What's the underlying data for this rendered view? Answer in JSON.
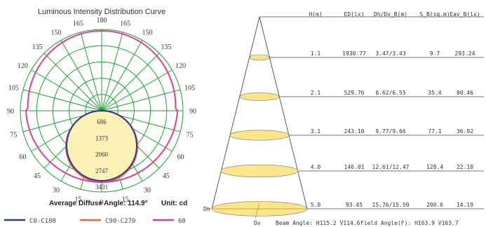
{
  "polar": {
    "title": "Luminous Intensity Distribution Curve",
    "angle_labels": [
      "0",
      "15",
      "30",
      "45",
      "60",
      "75",
      "90",
      "105",
      "120",
      "135",
      "150",
      "165",
      "180"
    ],
    "ring_labels": [
      "686",
      "1373",
      "2060",
      "2747",
      "3431"
    ],
    "average_text": "Average Diffuse Angle: 114.9°",
    "unit_text": "Unit: cd",
    "legend": [
      {
        "name": "C0-C180",
        "color": "#2b3a9c"
      },
      {
        "name": "C90-C270",
        "color": "#f06a32"
      },
      {
        "name": "60",
        "color": "#e0408a"
      }
    ],
    "grid_color": "#1fa035",
    "fill_color": "#fbf1b4"
  },
  "cone": {
    "headers": [
      "H(m)",
      "ED(lx)",
      "Dh/Dv_B(m)",
      "S_B(sq.m)",
      "Eav_B(lx)"
    ],
    "rows": [
      [
        "1.1",
        "1930.77",
        "3.47/3.43",
        "9.7",
        "293.24"
      ],
      [
        "2.1",
        "529.76",
        "6.62/6.55",
        "35.4",
        "80.46"
      ],
      [
        "3.1",
        "243.10",
        "9.77/9.66",
        "77.1",
        "36.92"
      ],
      [
        "4.0",
        "146.01",
        "12.61/12.47",
        "128.4",
        "22.18"
      ],
      [
        "5.0",
        "93.45",
        "15.76/15.59",
        "200.6",
        "14.19"
      ]
    ],
    "dh_label": "Dh",
    "dv_label": "Dv",
    "beam_angle": "Beam Angle: H115.2 V114.6",
    "field_angle": "Field Angle(F): H163.9 V163.7",
    "ellipse_color": "#fbe58a"
  }
}
